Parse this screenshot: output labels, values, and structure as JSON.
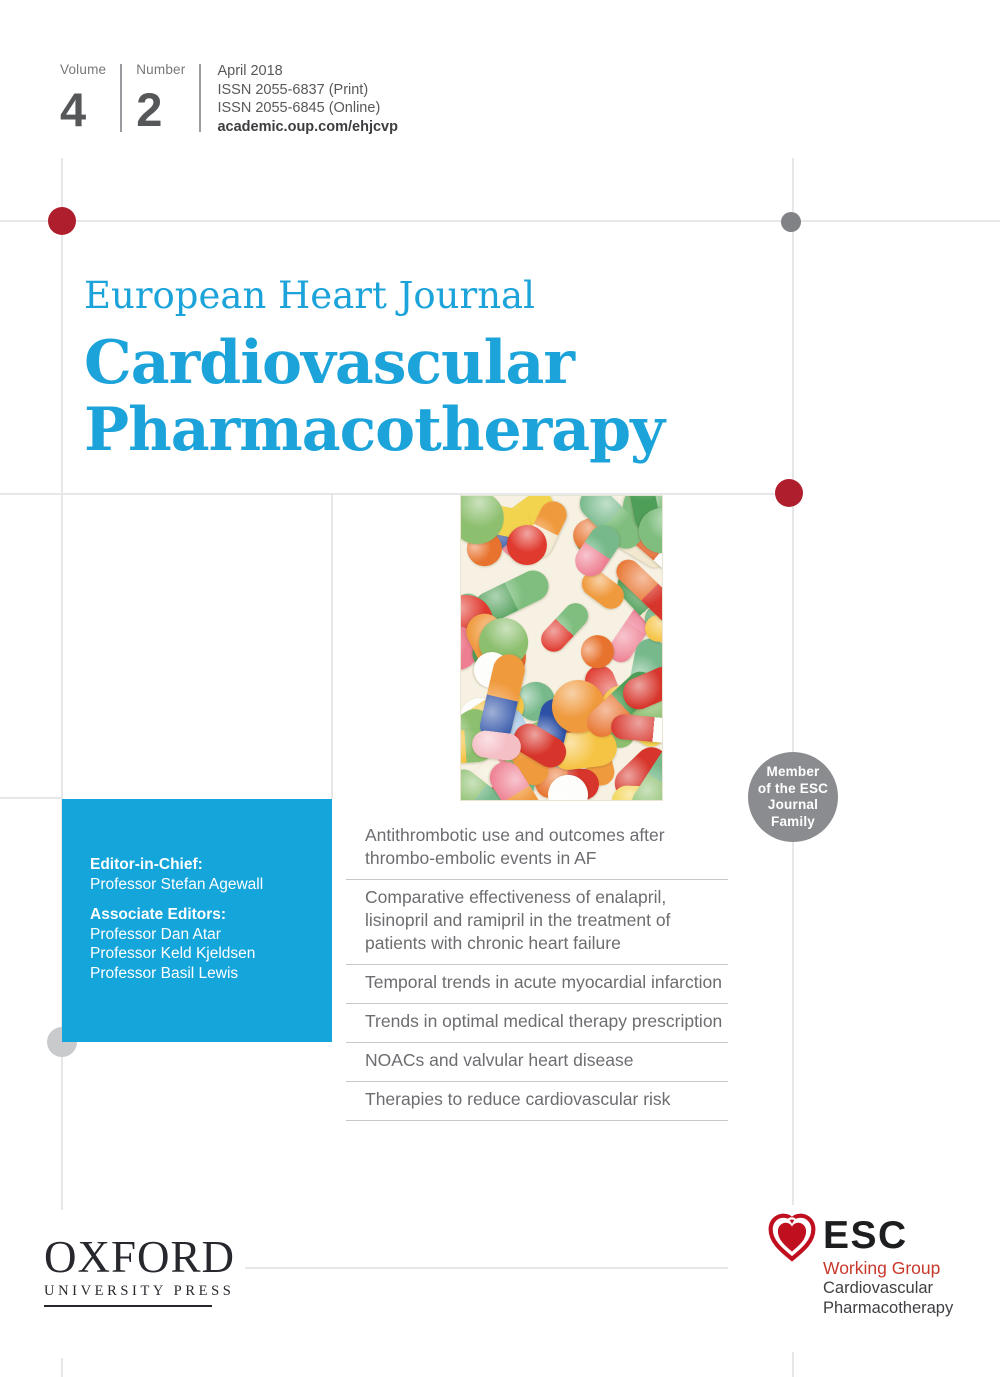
{
  "masthead": {
    "volume_label": "Volume",
    "volume": "4",
    "number_label": "Number",
    "number": "2",
    "date": "April 2018",
    "issn_print": "ISSN 2055-6837 (Print)",
    "issn_online": "ISSN 2055-6845 (Online)",
    "url": "academic.oup.com/ehjcvp"
  },
  "title": {
    "series": "European Heart Journal",
    "line1": "Cardiovascular",
    "line2": "Pharmacotherapy"
  },
  "cover_image": {
    "alt": "Colorful assortment of pills, tablets and capsules"
  },
  "badge": {
    "lines": [
      "Member",
      "of the ESC",
      "Journal",
      "Family"
    ]
  },
  "editors": {
    "eic_label": "Editor-in-Chief:",
    "eic_name": "Professor Stefan Agewall",
    "assoc_label": "Associate Editors:",
    "associates": [
      "Professor Dan Atar",
      "Professor Keld Kjeldsen",
      "Professor Basil Lewis"
    ]
  },
  "contents": {
    "items": [
      "Antithrombotic use and outcomes after thrombo-embolic events in AF",
      "Comparative effectiveness of enalapril, lisinopril and ramipril in the treatment of patients with chronic heart failure",
      "Temporal trends in acute myocardial infarction",
      "Trends in optimal medical therapy prescription",
      "NOACs and valvular heart disease",
      "Therapies to reduce cardiovascular risk"
    ]
  },
  "publisher": {
    "name": "OXFORD",
    "subtitle": "UNIVERSITY PRESS"
  },
  "esc": {
    "acronym": "ESC",
    "group": "Working Group",
    "org_line1": "Cardiovascular",
    "org_line2": "Pharmacotherapy"
  },
  "colors": {
    "accent_cyan": "#1BA3DA",
    "box_cyan": "#14A5DB",
    "dark_red": "#AF1E2D",
    "esc_red": "#C8392C",
    "badge_gray": "#8A8C8F"
  }
}
